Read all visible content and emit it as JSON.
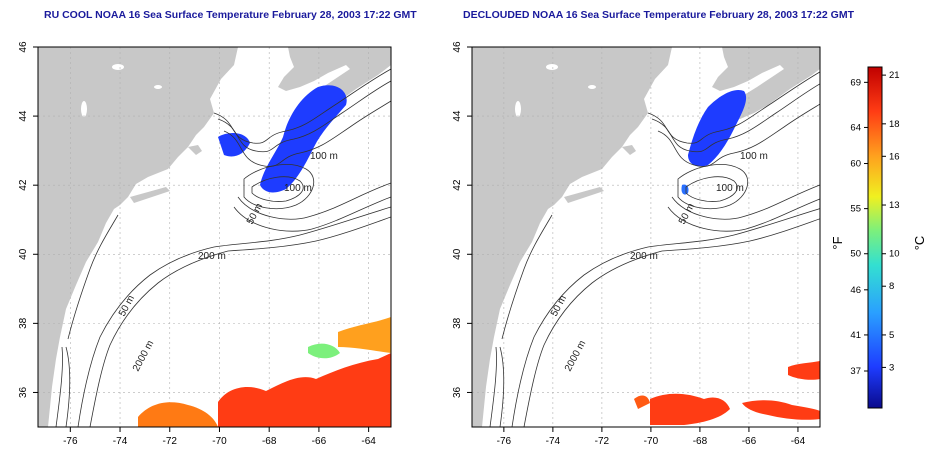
{
  "panels": [
    {
      "title": "RU COOL NOAA 16 Sea Surface Temperature February 28, 2003 17:22 GMT",
      "contour_labels": [
        "100 m",
        "100 m",
        "50 m",
        "200 m",
        "50 m",
        "2000 m"
      ]
    },
    {
      "title": "DECLOUDED NOAA 16 Sea Surface Temperature February 28, 2003 17:22 GMT",
      "contour_labels": [
        "100 m",
        "100 m",
        "50 m",
        "200 m",
        "50 m",
        "2000 m"
      ]
    }
  ],
  "axes": {
    "lon_ticks": [
      "-76",
      "-74",
      "-72",
      "-70",
      "-68",
      "-66",
      "-64"
    ],
    "lat_ticks": [
      "46",
      "44",
      "42",
      "40",
      "38",
      "36"
    ],
    "lon_values": [
      -76,
      -74,
      -72,
      -70,
      -68,
      -66,
      -64
    ],
    "lat_values": [
      46,
      44,
      42,
      40,
      38,
      36
    ],
    "lon_range": [
      -77.3,
      -63.1
    ],
    "lat_range": [
      35,
      46
    ]
  },
  "colorbar": {
    "fahrenheit_label": "°F",
    "celsius_label": "°C",
    "fahrenheit_ticks": [
      "69",
      "64",
      "60",
      "55",
      "50",
      "46",
      "41",
      "37"
    ],
    "fahrenheit_values": [
      69,
      64,
      60,
      55,
      50,
      46,
      41,
      37
    ],
    "celsius_ticks": [
      "21",
      "18",
      "16",
      "13",
      "10",
      "8",
      "5",
      "3"
    ],
    "celsius_values": [
      21,
      18,
      16,
      13,
      10,
      8,
      5,
      3
    ],
    "range_celsius": [
      0.5,
      21.5
    ],
    "colors": [
      "#0a0a8c",
      "#1e3cff",
      "#2aa0ff",
      "#33e0d0",
      "#7cf07c",
      "#f0f020",
      "#ffa01e",
      "#ff3c14",
      "#c00000"
    ]
  }
}
